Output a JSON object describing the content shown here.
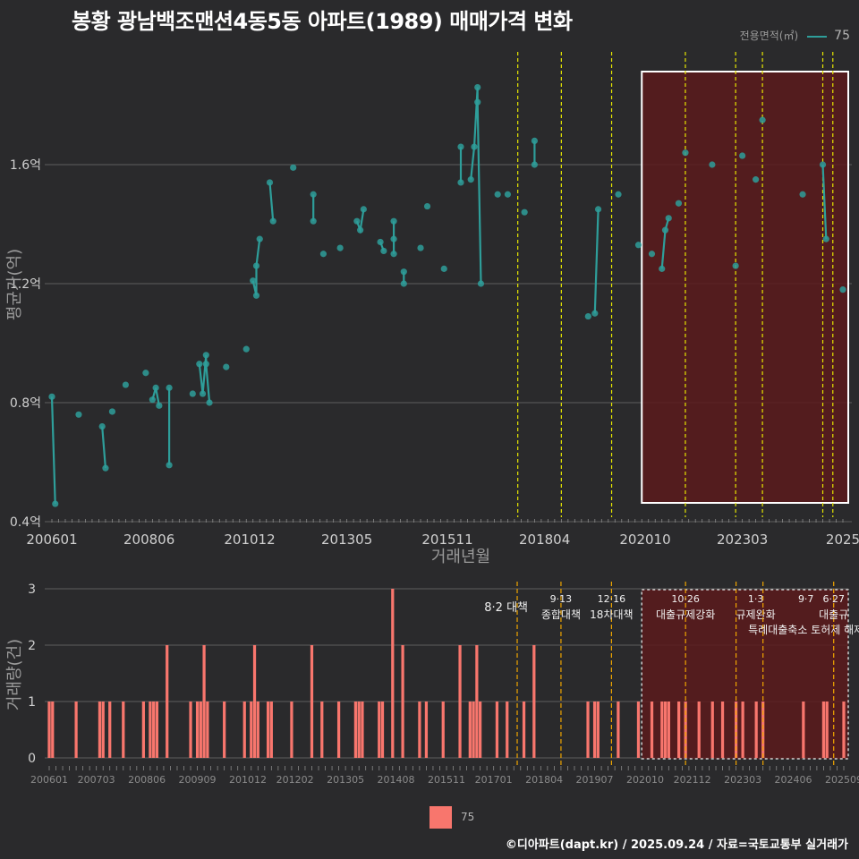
{
  "title": "봉황 광남백조맨션4동5동 아파트(1989) 매매가격 변화",
  "legend": {
    "title": "전용면적(㎡)",
    "series_label": "75"
  },
  "bottom_legend": {
    "label": "75"
  },
  "credit": "©디아파트(dapt.kr) / 2025.09.24 / 자료=국토교통부 실거래가",
  "colors": {
    "background": "#2a2a2c",
    "price_line": "#2e9e9a",
    "volume_bar": "#f8766d",
    "policy_line": "#e6e600",
    "policy_line_bottom": "#f0a500",
    "highlight_fill": "#5a1a1c",
    "grid": "#5e5e5e"
  },
  "chart_data": [
    {
      "type": "line",
      "title": "평균가(억원) 추이",
      "xlabel": "거래년월",
      "ylabel": "평균가(억)",
      "ylim": [
        0.4,
        1.98
      ],
      "xlim": [
        "2006-01",
        "2025-09"
      ],
      "y_ticks": [
        0.4,
        0.8,
        1.2,
        1.6
      ],
      "y_tick_labels": [
        "0.4억",
        "0.8억",
        "1.2억",
        "1.6억"
      ],
      "x_ticks": [
        "2006-01",
        "2008-06",
        "2010-12",
        "2013-05",
        "2015-11",
        "2018-04",
        "2020-10",
        "2023-03",
        "2025-09"
      ],
      "x_tick_labels": [
        "200601",
        "200806",
        "201012",
        "201305",
        "201511",
        "201804",
        "202010",
        "202303",
        "2025"
      ],
      "policy_dates": [
        "2017-08",
        "2018-09",
        "2019-12",
        "2021-10",
        "2023-01",
        "2023-09",
        "2025-03",
        "2025-06"
      ],
      "highlight_range": [
        "2020-09",
        "2025-09"
      ],
      "series": [
        {
          "name": "75",
          "points": [
            [
              "2006-01",
              0.82
            ],
            [
              "2006-02",
              0.46
            ],
            [
              "2006-09",
              0.76
            ],
            [
              "2007-04",
              0.72
            ],
            [
              "2007-05",
              0.58
            ],
            [
              "2007-07",
              0.77
            ],
            [
              "2007-11",
              0.86
            ],
            [
              "2008-05",
              0.9
            ],
            [
              "2008-07",
              0.81
            ],
            [
              "2008-08",
              0.85
            ],
            [
              "2008-09",
              0.79
            ],
            [
              "2008-12",
              0.59
            ],
            [
              "2008-12",
              0.85
            ],
            [
              "2009-07",
              0.83
            ],
            [
              "2009-09",
              0.93
            ],
            [
              "2009-10",
              0.83
            ],
            [
              "2009-11",
              0.96
            ],
            [
              "2009-11",
              0.93
            ],
            [
              "2009-12",
              0.8
            ],
            [
              "2010-05",
              0.92
            ],
            [
              "2010-11",
              0.98
            ],
            [
              "2011-01",
              1.21
            ],
            [
              "2011-02",
              1.16
            ],
            [
              "2011-02",
              1.26
            ],
            [
              "2011-03",
              1.35
            ],
            [
              "2011-06",
              1.54
            ],
            [
              "2011-07",
              1.41
            ],
            [
              "2012-01",
              1.59
            ],
            [
              "2012-07",
              1.5
            ],
            [
              "2012-07",
              1.41
            ],
            [
              "2012-10",
              1.3
            ],
            [
              "2013-03",
              1.32
            ],
            [
              "2013-08",
              1.41
            ],
            [
              "2013-09",
              1.38
            ],
            [
              "2013-10",
              1.45
            ],
            [
              "2014-03",
              1.34
            ],
            [
              "2014-04",
              1.31
            ],
            [
              "2014-07",
              1.35
            ],
            [
              "2014-07",
              1.3
            ],
            [
              "2014-07",
              1.41
            ],
            [
              "2014-10",
              1.24
            ],
            [
              "2014-10",
              1.2
            ],
            [
              "2015-03",
              1.32
            ],
            [
              "2015-05",
              1.46
            ],
            [
              "2015-10",
              1.25
            ],
            [
              "2016-03",
              1.66
            ],
            [
              "2016-03",
              1.54
            ],
            [
              "2016-06",
              1.55
            ],
            [
              "2016-07",
              1.66
            ],
            [
              "2016-08",
              1.86
            ],
            [
              "2016-08",
              1.81
            ],
            [
              "2016-09",
              1.2
            ],
            [
              "2017-02",
              1.5
            ],
            [
              "2017-05",
              1.5
            ],
            [
              "2017-10",
              1.44
            ],
            [
              "2018-01",
              1.6
            ],
            [
              "2018-01",
              1.68
            ],
            [
              "2019-05",
              1.09
            ],
            [
              "2019-07",
              1.1
            ],
            [
              "2019-08",
              1.45
            ],
            [
              "2020-02",
              1.5
            ],
            [
              "2020-08",
              1.33
            ],
            [
              "2020-12",
              1.3
            ],
            [
              "2021-03",
              1.25
            ],
            [
              "2021-04",
              1.38
            ],
            [
              "2021-05",
              1.42
            ],
            [
              "2021-08",
              1.47
            ],
            [
              "2021-10",
              1.64
            ],
            [
              "2022-06",
              1.6
            ],
            [
              "2023-01",
              1.26
            ],
            [
              "2023-03",
              1.63
            ],
            [
              "2023-07",
              1.55
            ],
            [
              "2023-09",
              1.75
            ],
            [
              "2024-09",
              1.5
            ],
            [
              "2025-03",
              1.6
            ],
            [
              "2025-04",
              1.35
            ],
            [
              "2025-09",
              1.18
            ]
          ]
        }
      ]
    },
    {
      "type": "bar",
      "title": "거래량 추이",
      "xlabel": "",
      "ylabel": "거래량(건)",
      "ylim": [
        0,
        3
      ],
      "y_ticks": [
        0,
        1,
        2,
        3
      ],
      "x_tick_labels": [
        "200601",
        "200703",
        "200806",
        "200909",
        "201012",
        "201202",
        "201305",
        "201408",
        "201511",
        "201701",
        "201804",
        "201907",
        "202010",
        "202112",
        "202303",
        "202406",
        "202509"
      ],
      "x_ticks": [
        "2006-01",
        "2007-03",
        "2008-06",
        "2009-09",
        "2010-12",
        "2012-02",
        "2013-05",
        "2014-08",
        "2015-11",
        "2017-01",
        "2018-04",
        "2019-07",
        "2020-10",
        "2021-12",
        "2023-03",
        "2024-06",
        "2025-09"
      ],
      "series": [
        {
          "name": "75",
          "points": [
            [
              "2006-01",
              1
            ],
            [
              "2006-02",
              1
            ],
            [
              "2006-09",
              1
            ],
            [
              "2007-04",
              1
            ],
            [
              "2007-05",
              1
            ],
            [
              "2007-07",
              1
            ],
            [
              "2007-11",
              1
            ],
            [
              "2008-05",
              1
            ],
            [
              "2008-07",
              1
            ],
            [
              "2008-08",
              1
            ],
            [
              "2008-09",
              1
            ],
            [
              "2008-12",
              2
            ],
            [
              "2009-07",
              1
            ],
            [
              "2009-09",
              1
            ],
            [
              "2009-10",
              1
            ],
            [
              "2009-11",
              2
            ],
            [
              "2009-12",
              1
            ],
            [
              "2010-05",
              1
            ],
            [
              "2010-11",
              1
            ],
            [
              "2011-01",
              1
            ],
            [
              "2011-02",
              2
            ],
            [
              "2011-03",
              1
            ],
            [
              "2011-06",
              1
            ],
            [
              "2011-07",
              1
            ],
            [
              "2012-01",
              1
            ],
            [
              "2012-07",
              2
            ],
            [
              "2012-10",
              1
            ],
            [
              "2013-03",
              1
            ],
            [
              "2013-08",
              1
            ],
            [
              "2013-09",
              1
            ],
            [
              "2013-10",
              1
            ],
            [
              "2014-03",
              1
            ],
            [
              "2014-04",
              1
            ],
            [
              "2014-07",
              3
            ],
            [
              "2014-10",
              2
            ],
            [
              "2015-03",
              1
            ],
            [
              "2015-05",
              1
            ],
            [
              "2015-10",
              1
            ],
            [
              "2016-03",
              2
            ],
            [
              "2016-06",
              1
            ],
            [
              "2016-07",
              1
            ],
            [
              "2016-08",
              2
            ],
            [
              "2016-09",
              1
            ],
            [
              "2017-02",
              1
            ],
            [
              "2017-05",
              1
            ],
            [
              "2017-10",
              1
            ],
            [
              "2018-01",
              2
            ],
            [
              "2019-05",
              1
            ],
            [
              "2019-07",
              1
            ],
            [
              "2019-08",
              1
            ],
            [
              "2020-02",
              1
            ],
            [
              "2020-08",
              1
            ],
            [
              "2020-12",
              1
            ],
            [
              "2021-03",
              1
            ],
            [
              "2021-04",
              1
            ],
            [
              "2021-05",
              1
            ],
            [
              "2021-08",
              1
            ],
            [
              "2021-10",
              1
            ],
            [
              "2022-02",
              1
            ],
            [
              "2022-06",
              1
            ],
            [
              "2022-09",
              1
            ],
            [
              "2023-01",
              1
            ],
            [
              "2023-03",
              1
            ],
            [
              "2023-07",
              1
            ],
            [
              "2023-09",
              1
            ],
            [
              "2024-09",
              1
            ],
            [
              "2025-03",
              1
            ],
            [
              "2025-04",
              1
            ],
            [
              "2025-09",
              1
            ]
          ]
        }
      ],
      "policy_lines": [
        {
          "date": "2017-08",
          "label_top": "",
          "label_bottom": "8·2 대책"
        },
        {
          "date": "2018-09",
          "label_top": "9·13",
          "label_bottom": "종합대책"
        },
        {
          "date": "2019-12",
          "label_top": "12·16",
          "label_bottom": "18차대책"
        },
        {
          "date": "2021-10",
          "label_top": "10·26",
          "label_bottom": "대출규제강화"
        },
        {
          "date": "2023-01",
          "label_top": "1·3",
          "label_bottom": "규제완화"
        },
        {
          "date": "2023-09",
          "label_top": "9·7",
          "label_bottom": "특례대출축소 토허제 해제"
        },
        {
          "date": "2025-06",
          "label_top": "6·27",
          "label_bottom": "대출규"
        }
      ],
      "highlight_range": [
        "2020-09",
        "2025-09"
      ]
    }
  ]
}
